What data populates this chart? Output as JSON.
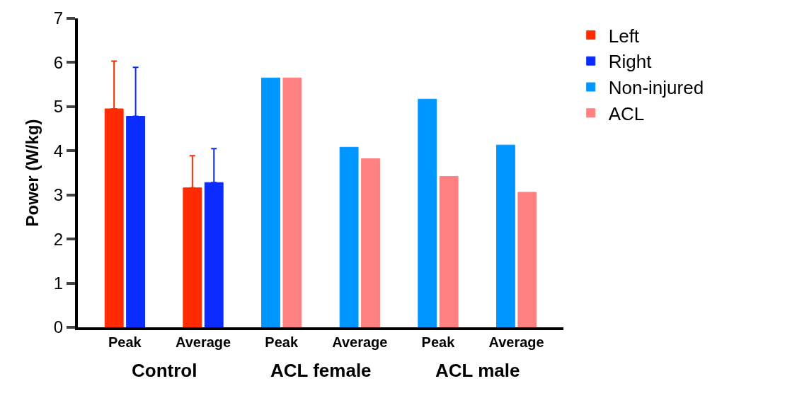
{
  "chart_data": {
    "type": "bar",
    "categories": [
      "Peak",
      "Average",
      "Peak",
      "Average",
      "Peak",
      "Average"
    ],
    "ylabel": "Power (W/kg)",
    "ylim": [
      0,
      7
    ],
    "yticks": [
      0,
      1,
      2,
      3,
      4,
      5,
      6,
      7
    ],
    "legend": "top right",
    "annotations": [
      "Control",
      "ACL female",
      "ACL male"
    ],
    "series": [
      {
        "name": "Left",
        "color": "#ff2a00",
        "values": [
          4.95,
          3.16,
          null,
          null,
          null,
          null
        ],
        "errors": [
          [
            4.95,
            6.03
          ],
          [
            3.16,
            3.89
          ],
          null,
          null,
          null,
          null
        ]
      },
      {
        "name": "Right",
        "color": "#0a2cff",
        "values": [
          4.78,
          3.28,
          null,
          null,
          null,
          null
        ],
        "errors": [
          [
            4.78,
            5.89
          ],
          [
            3.28,
            4.05
          ],
          null,
          null,
          null,
          null
        ]
      },
      {
        "name": "Non-injured",
        "color": "#0096ff",
        "values": [
          null,
          null,
          5.65,
          4.08,
          5.17,
          4.13
        ]
      },
      {
        "name": "ACL",
        "color": "#ff8080",
        "values": [
          null,
          null,
          5.65,
          3.82,
          3.42,
          3.06
        ]
      }
    ]
  }
}
